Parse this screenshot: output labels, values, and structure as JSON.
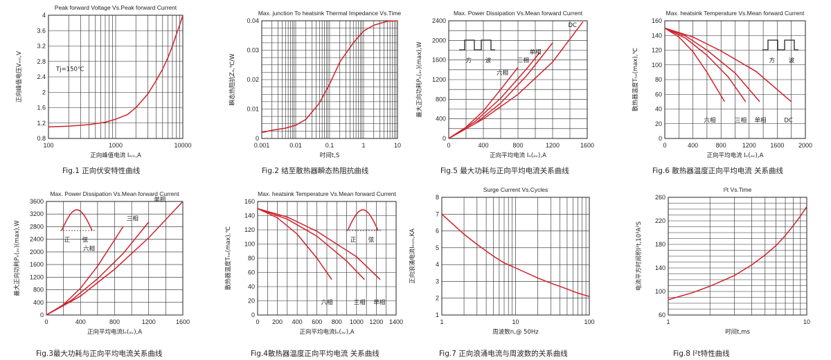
{
  "chart_data": [
    {
      "id": "fig1",
      "type": "line",
      "title": "Peak forward Voltage Vs.Peak forward Current",
      "ylabel": "正向峰值电压Vₑₘ,V",
      "xlabel": "正向峰值电流 Iₑₘ,A",
      "caption": "Fig.1   正向伏安特性曲线",
      "xscale": "log",
      "xlim": [
        100,
        10000
      ],
      "ylim": [
        0.8,
        4
      ],
      "xticks": [
        "100",
        "1000",
        "10000"
      ],
      "yticks": [
        "0.8",
        "1.2",
        "1.6",
        "2",
        "2.4",
        "2.8",
        "3.2",
        "3.6",
        "4"
      ],
      "annotations": [
        {
          "text": "Tj=150℃",
          "x": 130,
          "y": 2.55
        }
      ],
      "series": [
        {
          "x": [
            100,
            200,
            400,
            700,
            1000,
            1500,
            2000,
            3000,
            4000,
            5000,
            6000,
            7000,
            8000,
            9000,
            10000
          ],
          "y": [
            1.1,
            1.12,
            1.16,
            1.22,
            1.3,
            1.42,
            1.6,
            1.95,
            2.3,
            2.6,
            2.9,
            3.2,
            3.5,
            3.75,
            4.0
          ]
        }
      ]
    },
    {
      "id": "fig2",
      "type": "line",
      "title": "Max. junction To heatsink Thermal Impedance Vs.Time",
      "ylabel": "瞬态热阻抗Zₐ,℃/W",
      "xlabel": "时间t,S",
      "caption": "Fig.2 结至散热器瞬态热阻抗曲线",
      "xscale": "log",
      "xlim": [
        0.001,
        10
      ],
      "ylim": [
        0,
        0.04
      ],
      "xticks": [
        "0.001",
        "0.01",
        "0.1",
        "1",
        "10"
      ],
      "yticks": [
        "0",
        "0.01",
        "0.02",
        "0.03",
        "0.04"
      ],
      "series": [
        {
          "x": [
            0.001,
            0.002,
            0.005,
            0.01,
            0.02,
            0.05,
            0.1,
            0.2,
            0.5,
            1,
            2,
            5,
            10
          ],
          "y": [
            0.002,
            0.0028,
            0.0035,
            0.0045,
            0.0065,
            0.012,
            0.0185,
            0.026,
            0.0325,
            0.0365,
            0.0385,
            0.0398,
            0.04
          ]
        }
      ]
    },
    {
      "id": "fig5",
      "type": "line",
      "title": "Max. Power Dissipation Vs.Mean forward Current",
      "ylabel": "最大正向功耗Pₑ(ₐᵥ)(max),W",
      "xlabel": "正向平均电流 Iₑ(ₐᵥ),A",
      "caption": "Fig.5 最大功耗与正向平均电流关系曲线",
      "xlim": [
        0,
        1600
      ],
      "ylim": [
        0,
        2400
      ],
      "xticks": [
        "0",
        "400",
        "800",
        "1200",
        "1600"
      ],
      "yticks": [
        "0",
        "400",
        "800",
        "1200",
        "1600",
        "2000",
        "2400"
      ],
      "inset": {
        "shape": "square",
        "labels": [
          "方",
          "波"
        ]
      },
      "series": [
        {
          "name": "六相",
          "x": [
            0,
            200,
            400,
            600,
            800
          ],
          "y": [
            0,
            230,
            560,
            1000,
            1450
          ]
        },
        {
          "name": "三相",
          "x": [
            0,
            300,
            600,
            900,
            1050
          ],
          "y": [
            0,
            340,
            820,
            1420,
            1750
          ]
        },
        {
          "name": "单相",
          "x": [
            0,
            300,
            600,
            900,
            1200
          ],
          "y": [
            0,
            300,
            720,
            1280,
            1950
          ]
        },
        {
          "name": "DC",
          "x": [
            0,
            400,
            800,
            1200,
            1550
          ],
          "y": [
            0,
            400,
            900,
            1560,
            2380
          ]
        }
      ]
    },
    {
      "id": "fig6",
      "type": "line",
      "title": "Max. heatsink Temperature Vs.Mean forward Current",
      "ylabel": "散热器温度Tₕₑ(max),℃",
      "xlabel": "正向平均电流 Iₑ(ₐᵥ),A",
      "caption": "Fig.6 散热器温度正向平均电流  关系曲线",
      "xlim": [
        0,
        2000
      ],
      "ylim": [
        0,
        160
      ],
      "xticks": [
        "0",
        "400",
        "800",
        "1200",
        "1600",
        "2000"
      ],
      "yticks": [
        "0",
        "20",
        "40",
        "60",
        "80",
        "100",
        "120",
        "140",
        "160"
      ],
      "inset": {
        "shape": "square",
        "labels": [
          "方",
          "波"
        ]
      },
      "series": [
        {
          "name": "六相",
          "x": [
            0,
            200,
            400,
            600,
            850
          ],
          "y": [
            150,
            138,
            118,
            90,
            50
          ]
        },
        {
          "name": "三相",
          "x": [
            0,
            300,
            600,
            900,
            1150
          ],
          "y": [
            150,
            136,
            113,
            84,
            50
          ]
        },
        {
          "name": "单相",
          "x": [
            0,
            300,
            600,
            1000,
            1350
          ],
          "y": [
            150,
            139,
            120,
            89,
            50
          ]
        },
        {
          "name": "DC",
          "x": [
            0,
            400,
            800,
            1300,
            1800
          ],
          "y": [
            150,
            138,
            119,
            91,
            50
          ]
        }
      ]
    },
    {
      "id": "fig3",
      "type": "line",
      "title": "Max. Power Dissipation Vs.Mean forward Current",
      "ylabel": "最大正向功耗Pₑ(ₐᵥ)(max),W",
      "xlabel": "正向平均电流Iₑ(ₐᵥ),A",
      "caption": "Fig.3最大功耗与正向平均电流关系曲线",
      "xlim": [
        0,
        1600
      ],
      "ylim": [
        0,
        3600
      ],
      "xticks": [
        "0",
        "400",
        "800",
        "1200",
        "1600"
      ],
      "yticks": [
        "0",
        "400",
        "800",
        "1200",
        "1600",
        "2000",
        "2400",
        "2800",
        "3200",
        "3600"
      ],
      "inset": {
        "shape": "sine",
        "labels": [
          "正",
          "弦"
        ]
      },
      "series": [
        {
          "name": "六相",
          "x": [
            0,
            200,
            400,
            600,
            900
          ],
          "y": [
            0,
            330,
            850,
            1550,
            2800
          ]
        },
        {
          "name": "三相",
          "x": [
            0,
            300,
            600,
            900,
            1200
          ],
          "y": [
            0,
            480,
            1150,
            1950,
            2950
          ]
        },
        {
          "name": "单相",
          "x": [
            0,
            400,
            800,
            1200,
            1600
          ],
          "y": [
            0,
            600,
            1450,
            2450,
            3600
          ]
        }
      ]
    },
    {
      "id": "fig4",
      "type": "line",
      "title": "Max. heatsink Temperature Vs.Mean forward Current",
      "ylabel": "散热器温度Tₕₑ(max),℃",
      "xlabel": "正向平均电流Iₑ(ₐᵥ),A",
      "caption": "Fig.4散热器温度正向平均电流  关系曲线",
      "xlim": [
        0,
        1400
      ],
      "ylim": [
        0,
        160
      ],
      "xticks": [
        "0",
        "200",
        "400",
        "600",
        "800",
        "1000",
        "1200",
        "1400"
      ],
      "yticks": [
        "0",
        "20",
        "40",
        "60",
        "80",
        "100",
        "120",
        "140",
        "160"
      ],
      "inset": {
        "shape": "sine",
        "labels": [
          "正",
          "弦"
        ]
      },
      "series": [
        {
          "name": "六相",
          "x": [
            0,
            200,
            400,
            600,
            750
          ],
          "y": [
            150,
            137,
            114,
            80,
            50
          ]
        },
        {
          "name": "三相",
          "x": [
            0,
            300,
            600,
            900,
            1080
          ],
          "y": [
            150,
            135,
            111,
            76,
            50
          ]
        },
        {
          "name": "单相",
          "x": [
            0,
            300,
            600,
            1000,
            1240
          ],
          "y": [
            150,
            138,
            118,
            82,
            50
          ]
        }
      ]
    },
    {
      "id": "fig7",
      "type": "line",
      "title": "Surge Current Vs.Cycles",
      "ylabel": "正向浪涌电流Iₑₛₘ,KA",
      "xlabel": "周波数n,@ 50Hz",
      "caption": "Fig.7 正向浪涌电流与周波数的关系曲线",
      "xscale": "log",
      "xlim": [
        1,
        100
      ],
      "ylim": [
        1,
        8
      ],
      "xticks": [
        "1",
        "10",
        "100"
      ],
      "yticks": [
        "1",
        "2",
        "3",
        "4",
        "5",
        "6",
        "7",
        "8"
      ],
      "series": [
        {
          "x": [
            1,
            1.5,
            2,
            3,
            5,
            7,
            10,
            20,
            30,
            50,
            70,
            100
          ],
          "y": [
            7.0,
            6.3,
            5.8,
            5.2,
            4.5,
            4.1,
            3.8,
            3.2,
            2.9,
            2.55,
            2.3,
            2.1
          ]
        }
      ]
    },
    {
      "id": "fig8",
      "type": "line",
      "title": "I²t  Vs.Time",
      "ylabel": "电流平方时间积I²t,10³A²S",
      "xlabel": "时间t,ms",
      "caption": "Fig.8 I²t特性曲线",
      "xscale": "log",
      "xlim": [
        1,
        10
      ],
      "ylim": [
        60,
        260
      ],
      "xticks": [
        "1",
        "10"
      ],
      "yticks": [
        "60",
        "100",
        "140",
        "180",
        "220",
        "260"
      ],
      "series": [
        {
          "x": [
            1,
            1.5,
            2,
            3,
            4,
            5,
            6,
            7,
            8,
            9,
            10
          ],
          "y": [
            86,
            98,
            109,
            127,
            145,
            162,
            178,
            195,
            212,
            228,
            244
          ]
        }
      ]
    }
  ]
}
